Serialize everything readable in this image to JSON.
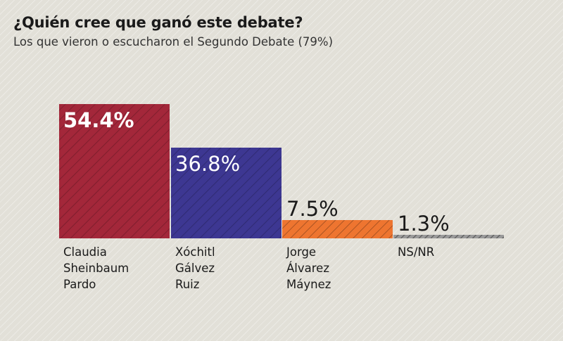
{
  "title": "¿Quién cree que ganó este debate?",
  "subtitle": "Los que vieron o escucharon el Segundo Debate (79%)",
  "chart_data": {
    "type": "bar",
    "categories": [
      [
        "Claudia",
        "Sheinbaum",
        "Pardo"
      ],
      [
        "Xóchitl",
        "Gálvez",
        "Ruiz"
      ],
      [
        "Jorge",
        "Álvarez",
        "Máynez"
      ],
      [
        "NS/NR"
      ]
    ],
    "values": [
      54.4,
      36.8,
      7.5,
      1.3
    ],
    "value_labels": [
      "54.4%",
      "36.8%",
      "7.5%",
      "1.3%"
    ],
    "colors": [
      "#a3273a",
      "#3d3792",
      "#ee7530",
      "#9a9a9a"
    ],
    "ylim": [
      0,
      54.4
    ],
    "grid": false,
    "legend": "none"
  }
}
